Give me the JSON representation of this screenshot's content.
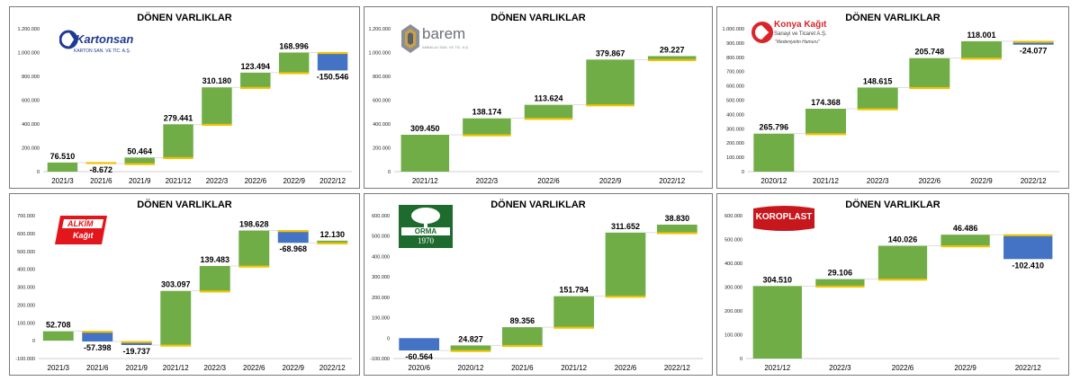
{
  "colors": {
    "up": "#70ad47",
    "down": "#4472c4",
    "connector": "#f2c200",
    "axis": "#bfbfbf"
  },
  "chart_data": [
    {
      "type": "bar",
      "subtype": "waterfall",
      "company": "Kartonsan",
      "title": "DÖNEN VARLIKLAR",
      "logo": {
        "main": "Kartonsan",
        "sub": "KARTON SAN. VE TİC. A.Ş."
      },
      "categories": [
        "2021/3",
        "2021/6",
        "2021/9",
        "2021/12",
        "2022/3",
        "2022/6",
        "2022/9",
        "2022/12"
      ],
      "values": [
        76510,
        -8672,
        50464,
        279441,
        310180,
        123494,
        168996,
        -150546
      ],
      "value_labels": [
        "76.510",
        "-8.672",
        "50.464",
        "279.441",
        "310.180",
        "123.494",
        "168.996",
        "-150.546"
      ],
      "yticks": [
        0,
        200000,
        400000,
        600000,
        800000,
        1000000,
        1200000
      ],
      "ytick_labels": [
        "0",
        "200.000",
        "400.000",
        "600.000",
        "800.000",
        "1.000.000",
        "1.200.000"
      ],
      "ylim": [
        0,
        1200000
      ]
    },
    {
      "type": "bar",
      "subtype": "waterfall",
      "company": "Barem",
      "title": "DÖNEN VARLIKLAR",
      "logo": {
        "main": "barem",
        "sub": "AMBALAJ SAN. VE TİC. A.Ş."
      },
      "categories": [
        "2021/12",
        "2022/3",
        "2022/6",
        "2022/9",
        "2022/12"
      ],
      "values": [
        309450,
        138174,
        113624,
        379867,
        29227
      ],
      "value_labels": [
        "309.450",
        "138.174",
        "113.624",
        "379.867",
        "29.227"
      ],
      "yticks": [
        0,
        200000,
        400000,
        600000,
        800000,
        1000000,
        1200000
      ],
      "ytick_labels": [
        "0",
        "200.000",
        "400.000",
        "600.000",
        "800.000",
        "1.000.000",
        "1.200.000"
      ],
      "ylim": [
        0,
        1200000
      ]
    },
    {
      "type": "bar",
      "subtype": "waterfall",
      "company": "Konya Kağıt",
      "title": "DÖNEN VARLIKLAR",
      "logo": {
        "main": "Konya Kağıt",
        "sub": "Sanayi ve Ticaret A.Ş.",
        "tagline": "\"Medeniyetin Hamuru\""
      },
      "categories": [
        "2020/12",
        "2021/12",
        "2022/3",
        "2022/6",
        "2022/9",
        "2022/12"
      ],
      "values": [
        265796,
        174368,
        148615,
        205748,
        118001,
        -24077
      ],
      "value_labels": [
        "265.796",
        "174.368",
        "148.615",
        "205.748",
        "118.001",
        "-24.077"
      ],
      "yticks": [
        0,
        100000,
        200000,
        300000,
        400000,
        500000,
        600000,
        700000,
        800000,
        900000,
        1000000
      ],
      "ytick_labels": [
        "0",
        "100.000",
        "200.000",
        "300.000",
        "400.000",
        "500.000",
        "600.000",
        "700.000",
        "800.000",
        "900.000",
        "1.000.000"
      ],
      "ylim": [
        0,
        1000000
      ]
    },
    {
      "type": "bar",
      "subtype": "waterfall",
      "company": "Alkim Kağıt",
      "title": "DÖNEN VARLIKLAR",
      "logo": {
        "main": "ALKİM",
        "sub": "Kağıt"
      },
      "categories": [
        "2021/3",
        "2021/6",
        "2021/9",
        "2021/12",
        "2022/3",
        "2022/6",
        "2022/9",
        "2022/12"
      ],
      "values": [
        52708,
        -57398,
        -19737,
        303097,
        139483,
        198628,
        -68968,
        12130
      ],
      "value_labels": [
        "52.708",
        "-57.398",
        "-19.737",
        "303.097",
        "139.483",
        "198.628",
        "-68.968",
        "12.130"
      ],
      "yticks": [
        -100000,
        0,
        100000,
        200000,
        300000,
        400000,
        500000,
        600000,
        700000
      ],
      "ytick_labels": [
        "-100.000",
        "0",
        "100.000",
        "200.000",
        "300.000",
        "400.000",
        "500.000",
        "600.000",
        "700.000"
      ],
      "ylim": [
        -100000,
        700000
      ]
    },
    {
      "type": "bar",
      "subtype": "waterfall",
      "company": "Orma",
      "title": "DÖNEN VARLIKLAR",
      "logo": {
        "main": "ORMA",
        "sub": "1970"
      },
      "categories": [
        "2020/6",
        "2020/12",
        "2021/6",
        "2021/12",
        "2022/6",
        "2022/12"
      ],
      "values": [
        -60564,
        24827,
        89356,
        151794,
        311652,
        38830
      ],
      "value_labels": [
        "-60.564",
        "24.827",
        "89.356",
        "151.794",
        "311.652",
        "38.830"
      ],
      "yticks": [
        -100000,
        0,
        100000,
        200000,
        300000,
        400000,
        500000,
        600000
      ],
      "ytick_labels": [
        "-100.000",
        "0",
        "100.000",
        "200.000",
        "300.000",
        "400.000",
        "500.000",
        "600.000"
      ],
      "ylim": [
        -100000,
        600000
      ]
    },
    {
      "type": "bar",
      "subtype": "waterfall",
      "company": "Koroplast",
      "title": "DÖNEN VARLIKLAR",
      "logo": {
        "main": "KOROPLAST"
      },
      "categories": [
        "2021/12",
        "2022/3",
        "2022/6",
        "2022/9",
        "2022/12"
      ],
      "values": [
        304510,
        29106,
        140026,
        46486,
        -102410
      ],
      "value_labels": [
        "304.510",
        "29.106",
        "140.026",
        "46.486",
        "-102.410"
      ],
      "yticks": [
        0,
        100000,
        200000,
        300000,
        400000,
        500000,
        600000
      ],
      "ytick_labels": [
        "0",
        "100.000",
        "200.000",
        "300.000",
        "400.000",
        "500.000",
        "600.000"
      ],
      "ylim": [
        0,
        600000
      ]
    }
  ]
}
